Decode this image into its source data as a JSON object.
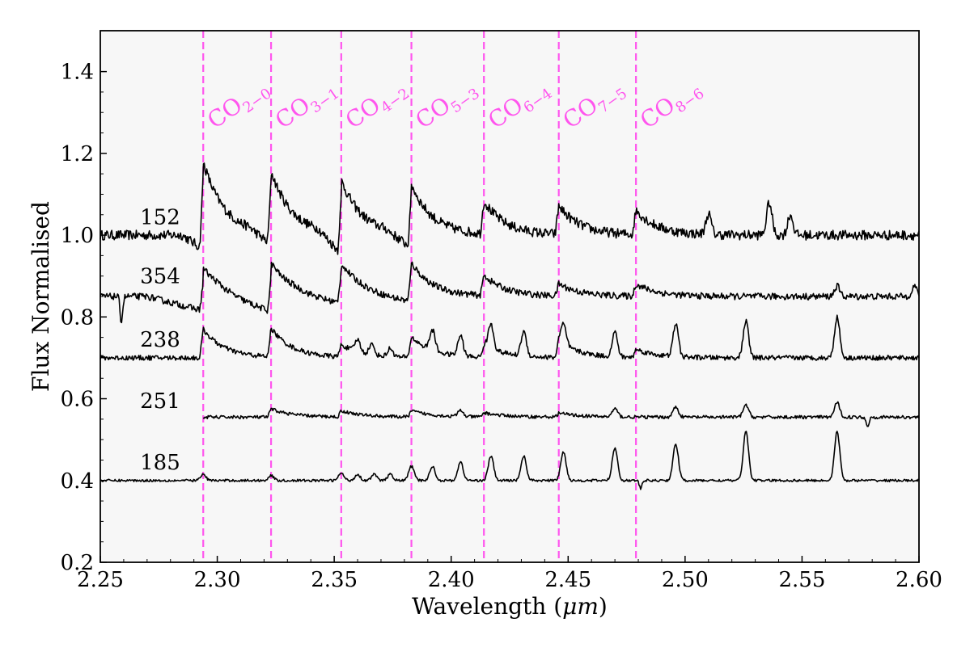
{
  "chart_data": {
    "type": "line",
    "title": "",
    "xlabel": "Wavelength",
    "xlabel_unit": "μm",
    "ylabel": "Flux Normalised",
    "xlim": [
      2.25,
      2.6
    ],
    "ylim": [
      0.2,
      1.5
    ],
    "xticks": [
      2.25,
      2.3,
      2.35,
      2.4,
      2.45,
      2.5,
      2.55,
      2.6
    ],
    "xtick_labels": [
      "2.25",
      "2.30",
      "2.35",
      "2.40",
      "2.45",
      "2.50",
      "2.55",
      "2.60"
    ],
    "yticks": [
      0.2,
      0.4,
      0.6,
      0.8,
      1.0,
      1.2,
      1.4
    ],
    "ytick_labels": [
      "0.2",
      "0.4",
      "0.6",
      "0.8",
      "1.0",
      "1.2",
      "1.4"
    ],
    "background": "#f7f7f7",
    "line_color": "#000000",
    "marker_color": "#ff55ee",
    "co_bandheads": [
      {
        "base": "CO",
        "sub": "2−0",
        "x": 2.294
      },
      {
        "base": "CO",
        "sub": "3−1",
        "x": 2.323
      },
      {
        "base": "CO",
        "sub": "4−2",
        "x": 2.353
      },
      {
        "base": "CO",
        "sub": "5−3",
        "x": 2.383
      },
      {
        "base": "CO",
        "sub": "6−4",
        "x": 2.414
      },
      {
        "base": "CO",
        "sub": "7−5",
        "x": 2.446
      },
      {
        "base": "CO",
        "sub": "8−6",
        "x": 2.479
      }
    ],
    "series": [
      {
        "name": "152",
        "label_x": 2.267,
        "label_y": 1.045,
        "x_start": 2.25,
        "baseline": 1.0,
        "noise": 0.012,
        "dips": [
          {
            "x1": 2.285,
            "x2": 2.294,
            "depth": 0.035
          },
          {
            "x1": 2.314,
            "x2": 2.323,
            "depth": 0.03
          },
          {
            "x1": 2.343,
            "x2": 2.353,
            "depth": 0.05
          },
          {
            "x1": 2.372,
            "x2": 2.383,
            "depth": 0.035
          }
        ],
        "bandhead_heights": [
          0.18,
          0.15,
          0.13,
          0.12,
          0.08,
          0.07,
          0.06
        ],
        "emission": [
          {
            "x": 2.51,
            "h": 0.05
          },
          {
            "x": 2.536,
            "h": 0.08
          },
          {
            "x": 2.545,
            "h": 0.05
          }
        ]
      },
      {
        "name": "354",
        "label_x": 2.267,
        "label_y": 0.9,
        "x_start": 2.25,
        "baseline": 0.85,
        "noise": 0.008,
        "dips": [
          {
            "x1": 2.27,
            "x2": 2.294,
            "depth": 0.035
          },
          {
            "x1": 2.3,
            "x2": 2.323,
            "depth": 0.04
          },
          {
            "x1": 2.333,
            "x2": 2.353,
            "depth": 0.02
          },
          {
            "x1": 2.362,
            "x2": 2.383,
            "depth": 0.015
          }
        ],
        "bandhead_heights": [
          0.07,
          0.08,
          0.08,
          0.08,
          0.05,
          0.03,
          0.03
        ],
        "absorption": [
          {
            "x": 2.259,
            "d": 0.06
          }
        ],
        "emission": [
          {
            "x": 2.565,
            "h": 0.025
          },
          {
            "x": 2.598,
            "h": 0.025
          }
        ]
      },
      {
        "name": "238",
        "label_x": 2.267,
        "label_y": 0.745,
        "x_start": 2.25,
        "baseline": 0.7,
        "noise": 0.006,
        "bandhead_heights": [
          0.07,
          0.07,
          0.03,
          0.05,
          0.03,
          0.04,
          0.02
        ],
        "emission": [
          {
            "x": 2.36,
            "h": 0.03
          },
          {
            "x": 2.366,
            "h": 0.025
          },
          {
            "x": 2.374,
            "h": 0.02
          },
          {
            "x": 2.392,
            "h": 0.05
          },
          {
            "x": 2.404,
            "h": 0.05
          },
          {
            "x": 2.417,
            "h": 0.06
          },
          {
            "x": 2.431,
            "h": 0.06
          },
          {
            "x": 2.448,
            "h": 0.05
          },
          {
            "x": 2.47,
            "h": 0.06
          },
          {
            "x": 2.496,
            "h": 0.08
          },
          {
            "x": 2.526,
            "h": 0.09
          },
          {
            "x": 2.565,
            "h": 0.1
          }
        ]
      },
      {
        "name": "251",
        "label_x": 2.267,
        "label_y": 0.595,
        "x_start": 2.294,
        "baseline": 0.555,
        "noise": 0.004,
        "bandhead_heights": [
          0.0,
          0.02,
          0.015,
          0.015,
          0.01,
          0.01,
          0.0
        ],
        "emission": [
          {
            "x": 2.404,
            "h": 0.015
          },
          {
            "x": 2.47,
            "h": 0.02
          },
          {
            "x": 2.496,
            "h": 0.025
          },
          {
            "x": 2.526,
            "h": 0.03
          },
          {
            "x": 2.565,
            "h": 0.035
          }
        ],
        "absorption": [
          {
            "x": 2.578,
            "d": 0.025
          }
        ]
      },
      {
        "name": "185",
        "label_x": 2.267,
        "label_y": 0.445,
        "x_start": 2.25,
        "baseline": 0.4,
        "noise": 0.003,
        "bandhead_heights": [
          0.0,
          0.0,
          0.0,
          0.0,
          0.0,
          0.0,
          0.0
        ],
        "absorption": [
          {
            "x": 2.481,
            "d": 0.02
          }
        ],
        "emission": [
          {
            "x": 2.294,
            "h": 0.015
          },
          {
            "x": 2.323,
            "h": 0.012
          },
          {
            "x": 2.353,
            "h": 0.018
          },
          {
            "x": 2.36,
            "h": 0.015
          },
          {
            "x": 2.367,
            "h": 0.015
          },
          {
            "x": 2.374,
            "h": 0.015
          },
          {
            "x": 2.383,
            "h": 0.035
          },
          {
            "x": 2.392,
            "h": 0.035
          },
          {
            "x": 2.404,
            "h": 0.045
          },
          {
            "x": 2.417,
            "h": 0.06
          },
          {
            "x": 2.431,
            "h": 0.06
          },
          {
            "x": 2.448,
            "h": 0.07
          },
          {
            "x": 2.47,
            "h": 0.08
          },
          {
            "x": 2.496,
            "h": 0.09
          },
          {
            "x": 2.526,
            "h": 0.12
          },
          {
            "x": 2.565,
            "h": 0.12
          }
        ]
      }
    ]
  }
}
